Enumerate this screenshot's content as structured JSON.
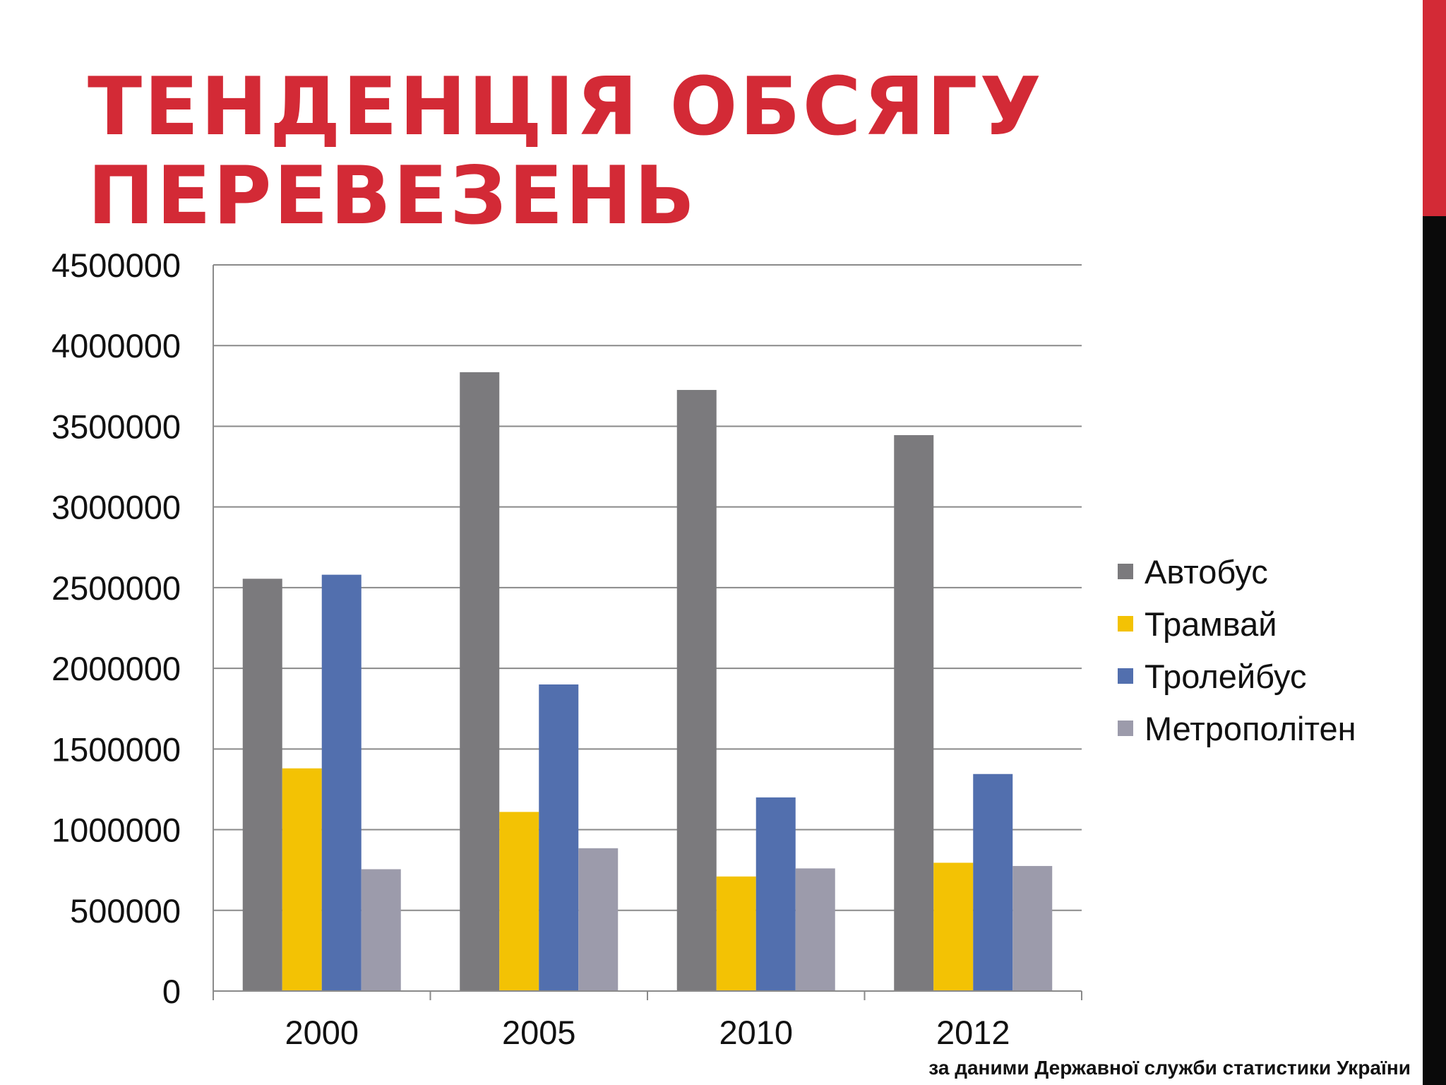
{
  "slide": {
    "title_lines": [
      "ТЕНДЕНЦІЯ ОБСЯГУ",
      "ПЕРЕВЕЗЕНЬ"
    ],
    "source_note": "за даними Державної служби статистики України",
    "colors": {
      "title": "#d32a36",
      "accent_red": "#d32a36",
      "accent_black": "#0a0a0a",
      "grid": "#8a8a8a",
      "axis": "#8a8a8a"
    }
  },
  "chart_data": {
    "type": "bar",
    "title": "",
    "xlabel": "",
    "ylabel": "",
    "categories": [
      "2000",
      "2005",
      "2010",
      "2012"
    ],
    "ylim": [
      0,
      4500000
    ],
    "yticks": [
      0,
      500000,
      1000000,
      1500000,
      2000000,
      2500000,
      3000000,
      3500000,
      4000000,
      4500000
    ],
    "grid": true,
    "legend_position": "right",
    "series": [
      {
        "name": "Автобус",
        "color": "#7b7a7d",
        "values": [
          2555000,
          3835000,
          3725000,
          3445000
        ]
      },
      {
        "name": "Трамвай",
        "color": "#f3c204",
        "values": [
          1380000,
          1110000,
          710000,
          795000
        ]
      },
      {
        "name": "Тролейбус",
        "color": "#526fae",
        "values": [
          2580000,
          1900000,
          1200000,
          1345000
        ]
      },
      {
        "name": "Метрополітен",
        "color": "#9c9bab",
        "values": [
          755000,
          885000,
          760000,
          775000
        ]
      }
    ]
  }
}
